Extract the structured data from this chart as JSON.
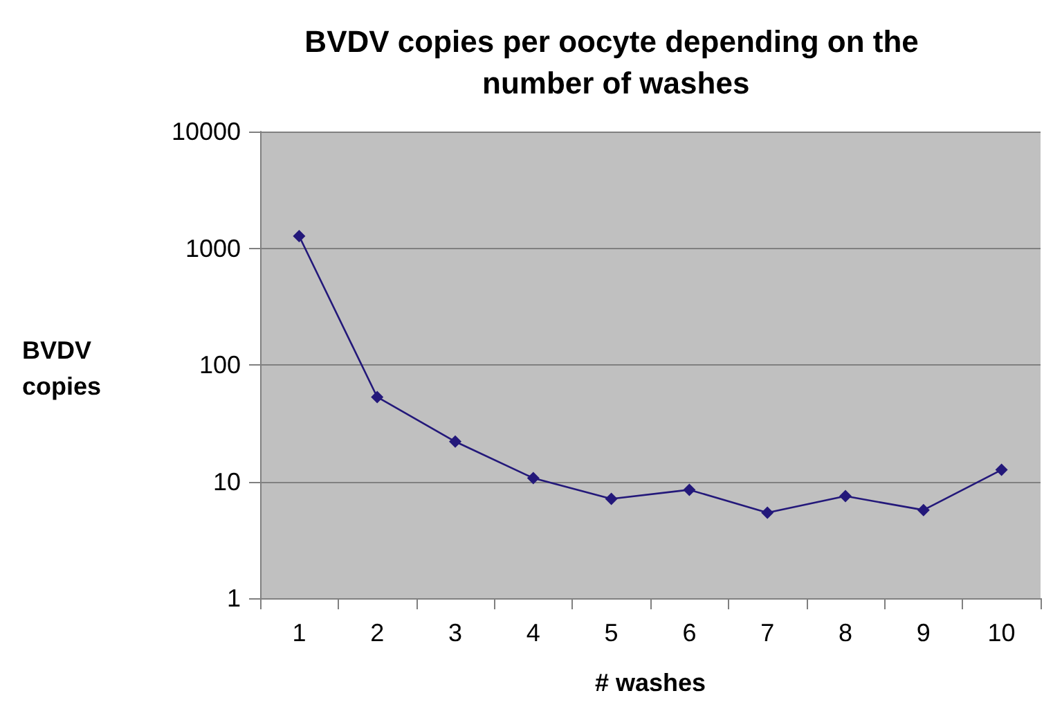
{
  "chart_data": {
    "type": "line",
    "title": "BVDV copies per oocyte depending on the number of washes",
    "xlabel": "# washes",
    "ylabel": "BVDV copies",
    "categories": [
      "1",
      "2",
      "3",
      "4",
      "5",
      "6",
      "7",
      "8",
      "9",
      "10"
    ],
    "series": [
      {
        "color": "#23187a",
        "values": [
          1270,
          53,
          22,
          10.7,
          7.1,
          8.5,
          5.4,
          7.5,
          5.7,
          12.6
        ]
      }
    ],
    "log": "y",
    "ylim": [
      1,
      10000
    ],
    "yticks": [
      1,
      10,
      100,
      1000,
      10000
    ],
    "grid": "y",
    "marker": "diamond",
    "line_style": "solid"
  }
}
